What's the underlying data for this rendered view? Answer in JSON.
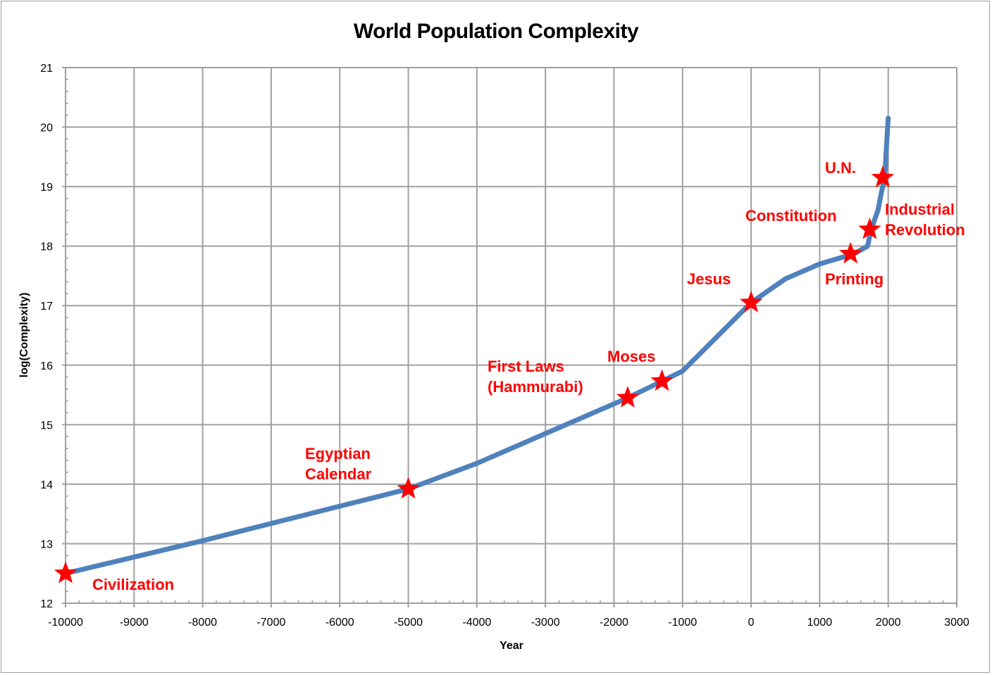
{
  "chart_data": {
    "type": "line",
    "title": "World Population Complexity",
    "xlabel": "Year",
    "ylabel": "log(Complexity)",
    "xlim": [
      -10000,
      3000
    ],
    "ylim": [
      12,
      21
    ],
    "grid": true,
    "legend": null,
    "x_ticks": [
      -10000,
      -9000,
      -8000,
      -7000,
      -6000,
      -5000,
      -4000,
      -3000,
      -2000,
      -1000,
      0,
      1000,
      2000,
      3000
    ],
    "y_ticks": [
      12,
      13,
      14,
      15,
      16,
      17,
      18,
      19,
      20,
      21
    ],
    "series": [
      {
        "name": "log(Complexity)",
        "color": "#4f81bd",
        "x": [
          -10000,
          -8000,
          -5000,
          -4000,
          -3000,
          -1800,
          -1300,
          -1000,
          0,
          500,
          1000,
          1500,
          1700,
          1750,
          1850,
          1900,
          1950,
          1970,
          2000
        ],
        "y": [
          12.5,
          13.05,
          13.92,
          14.35,
          14.85,
          15.45,
          15.73,
          15.9,
          17.05,
          17.45,
          17.7,
          17.87,
          18.0,
          18.28,
          18.6,
          18.9,
          19.15,
          19.6,
          20.15
        ]
      }
    ],
    "annotations": [
      {
        "label": "Civilization",
        "x": -10000,
        "y": 12.5,
        "marker": "star"
      },
      {
        "label": "Egyptian\nCalendar",
        "x": -5000,
        "y": 13.92,
        "marker": "star"
      },
      {
        "label": "First Laws\n(Hammurabi)",
        "x": -1800,
        "y": 15.45,
        "marker": "star"
      },
      {
        "label": "Moses",
        "x": -1300,
        "y": 15.73,
        "marker": "star"
      },
      {
        "label": "Jesus",
        "x": 0,
        "y": 17.05,
        "marker": "star"
      },
      {
        "label": "Printing",
        "x": 1450,
        "y": 17.87,
        "marker": "star"
      },
      {
        "label": "Constitution",
        "x": 1776,
        "y": 18.28,
        "marker": "star"
      },
      {
        "label": "Industrial\nRevolution",
        "x": 1776,
        "y": 18.28,
        "marker": "star"
      },
      {
        "label": "U.N.",
        "x": 1945,
        "y": 19.15,
        "marker": "star"
      }
    ]
  },
  "colors": {
    "line": "#4f81bd",
    "annotation": "#ff0000",
    "grid": "#a0a0a0"
  }
}
